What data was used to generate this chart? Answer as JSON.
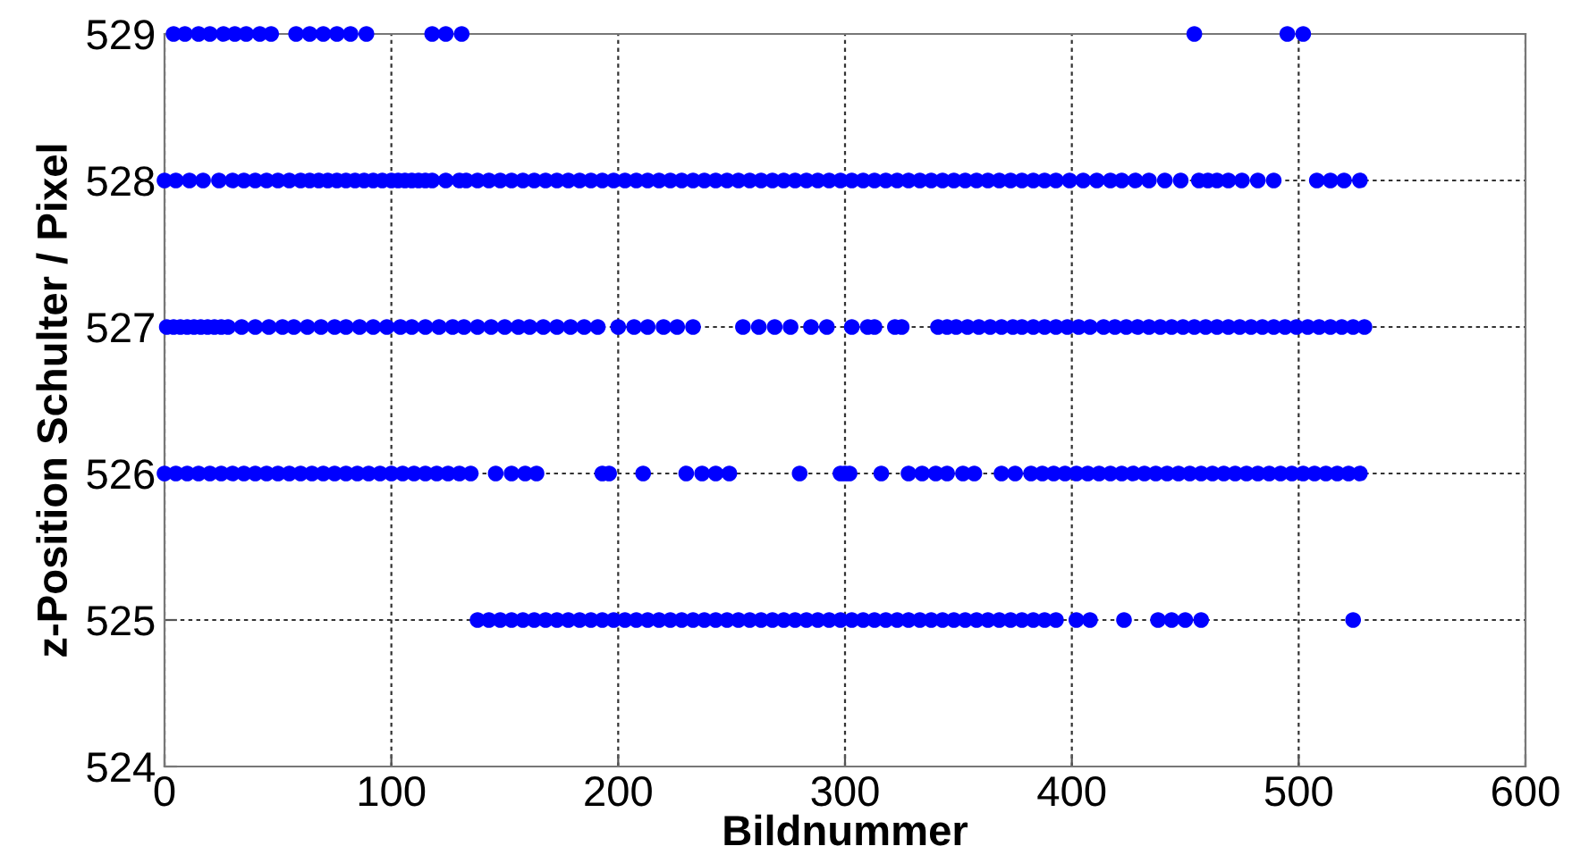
{
  "chart_data": {
    "type": "scatter",
    "xlabel": "Bildnummer",
    "ylabel": "z-Position Schulter / Pixel",
    "xlim": [
      0,
      600
    ],
    "ylim": [
      524,
      529
    ],
    "xticks": [
      0,
      100,
      200,
      300,
      400,
      500,
      600
    ],
    "yticks": [
      524,
      525,
      526,
      527,
      528,
      529
    ],
    "grid": true,
    "marker": "circle",
    "series": [
      {
        "color": "#0000ff",
        "x": [
          4,
          9,
          15,
          20,
          26,
          31,
          36,
          42,
          47,
          58,
          64,
          70,
          76,
          82,
          89,
          118,
          124,
          131,
          454,
          495,
          502
        ],
        "values": [
          529,
          529,
          529,
          529,
          529,
          529,
          529,
          529,
          529,
          529,
          529,
          529,
          529,
          529,
          529,
          529,
          529,
          529,
          529,
          529,
          529
        ]
      },
      {
        "color": "#0000ff",
        "x": [
          0,
          5,
          11,
          17,
          24,
          30,
          35,
          40,
          45,
          50,
          55,
          60,
          64,
          68,
          72,
          76,
          80,
          84,
          88,
          92,
          96,
          100,
          103,
          106,
          109,
          112,
          115,
          118,
          124,
          130,
          133,
          138,
          143,
          148,
          153,
          158,
          163,
          168,
          173,
          178,
          183,
          188,
          193,
          198,
          203,
          208,
          213,
          218,
          223,
          228,
          233,
          238,
          243,
          248,
          253,
          258,
          263,
          268,
          273,
          278,
          283,
          288,
          293,
          298,
          303,
          308,
          313,
          318,
          323,
          328,
          333,
          338,
          343,
          348,
          353,
          358,
          363,
          368,
          373,
          378,
          383,
          388,
          393,
          399,
          405,
          411,
          417,
          422,
          428,
          434,
          441,
          448,
          456,
          460,
          464,
          469,
          475,
          482,
          489,
          508,
          514,
          520,
          527
        ],
        "values": [
          528,
          528,
          528,
          528,
          528,
          528,
          528,
          528,
          528,
          528,
          528,
          528,
          528,
          528,
          528,
          528,
          528,
          528,
          528,
          528,
          528,
          528,
          528,
          528,
          528,
          528,
          528,
          528,
          528,
          528,
          528,
          528,
          528,
          528,
          528,
          528,
          528,
          528,
          528,
          528,
          528,
          528,
          528,
          528,
          528,
          528,
          528,
          528,
          528,
          528,
          528,
          528,
          528,
          528,
          528,
          528,
          528,
          528,
          528,
          528,
          528,
          528,
          528,
          528,
          528,
          528,
          528,
          528,
          528,
          528,
          528,
          528,
          528,
          528,
          528,
          528,
          528,
          528,
          528,
          528,
          528,
          528,
          528,
          528,
          528,
          528,
          528,
          528,
          528,
          528,
          528,
          528,
          528,
          528,
          528,
          528,
          528,
          528,
          528,
          528,
          528,
          528,
          528
        ]
      },
      {
        "color": "#0000ff",
        "x": [
          1,
          4,
          7,
          10,
          13,
          16,
          19,
          22,
          25,
          28,
          34,
          40,
          46,
          52,
          57,
          63,
          69,
          75,
          80,
          86,
          92,
          98,
          104,
          109,
          115,
          121,
          127,
          132,
          138,
          144,
          150,
          156,
          161,
          167,
          173,
          179,
          185,
          191,
          200,
          207,
          213,
          220,
          226,
          233,
          255,
          262,
          269,
          276,
          285,
          292,
          303,
          310,
          313,
          322,
          325,
          341,
          345,
          349,
          354,
          359,
          364,
          369,
          374,
          378,
          383,
          388,
          393,
          398,
          403,
          408,
          414,
          419,
          424,
          429,
          434,
          439,
          444,
          449,
          454,
          459,
          464,
          469,
          474,
          479,
          484,
          489,
          494,
          499,
          504,
          509,
          514,
          519,
          524,
          529
        ],
        "values": [
          527,
          527,
          527,
          527,
          527,
          527,
          527,
          527,
          527,
          527,
          527,
          527,
          527,
          527,
          527,
          527,
          527,
          527,
          527,
          527,
          527,
          527,
          527,
          527,
          527,
          527,
          527,
          527,
          527,
          527,
          527,
          527,
          527,
          527,
          527,
          527,
          527,
          527,
          527,
          527,
          527,
          527,
          527,
          527,
          527,
          527,
          527,
          527,
          527,
          527,
          527,
          527,
          527,
          527,
          527,
          527,
          527,
          527,
          527,
          527,
          527,
          527,
          527,
          527,
          527,
          527,
          527,
          527,
          527,
          527,
          527,
          527,
          527,
          527,
          527,
          527,
          527,
          527,
          527,
          527,
          527,
          527,
          527,
          527,
          527,
          527,
          527,
          527,
          527,
          527,
          527,
          527,
          527,
          527
        ]
      },
      {
        "color": "#0000ff",
        "x": [
          0,
          5,
          10,
          15,
          20,
          25,
          30,
          35,
          40,
          45,
          50,
          55,
          60,
          65,
          70,
          75,
          80,
          85,
          90,
          95,
          100,
          105,
          110,
          115,
          120,
          125,
          130,
          135,
          146,
          153,
          159,
          164,
          193,
          196,
          211,
          230,
          237,
          243,
          249,
          280,
          298,
          300,
          302,
          316,
          328,
          334,
          340,
          345,
          352,
          357,
          369,
          375,
          382,
          387,
          392,
          397,
          402,
          407,
          412,
          417,
          422,
          427,
          432,
          437,
          442,
          447,
          452,
          457,
          462,
          467,
          472,
          477,
          482,
          487,
          492,
          497,
          502,
          507,
          512,
          517,
          522,
          527
        ],
        "values": [
          526,
          526,
          526,
          526,
          526,
          526,
          526,
          526,
          526,
          526,
          526,
          526,
          526,
          526,
          526,
          526,
          526,
          526,
          526,
          526,
          526,
          526,
          526,
          526,
          526,
          526,
          526,
          526,
          526,
          526,
          526,
          526,
          526,
          526,
          526,
          526,
          526,
          526,
          526,
          526,
          526,
          526,
          526,
          526,
          526,
          526,
          526,
          526,
          526,
          526,
          526,
          526,
          526,
          526,
          526,
          526,
          526,
          526,
          526,
          526,
          526,
          526,
          526,
          526,
          526,
          526,
          526,
          526,
          526,
          526,
          526,
          526,
          526,
          526,
          526,
          526,
          526,
          526,
          526,
          526,
          526,
          526
        ]
      },
      {
        "color": "#0000ff",
        "x": [
          138,
          143,
          148,
          153,
          158,
          163,
          168,
          173,
          178,
          183,
          188,
          193,
          198,
          203,
          208,
          213,
          218,
          223,
          228,
          233,
          238,
          243,
          248,
          253,
          258,
          263,
          268,
          273,
          278,
          283,
          288,
          293,
          298,
          303,
          308,
          313,
          318,
          323,
          328,
          333,
          338,
          343,
          348,
          353,
          358,
          363,
          368,
          373,
          378,
          383,
          388,
          393,
          402,
          408,
          423,
          438,
          444,
          450,
          457,
          524
        ],
        "values": [
          525,
          525,
          525,
          525,
          525,
          525,
          525,
          525,
          525,
          525,
          525,
          525,
          525,
          525,
          525,
          525,
          525,
          525,
          525,
          525,
          525,
          525,
          525,
          525,
          525,
          525,
          525,
          525,
          525,
          525,
          525,
          525,
          525,
          525,
          525,
          525,
          525,
          525,
          525,
          525,
          525,
          525,
          525,
          525,
          525,
          525,
          525,
          525,
          525,
          525,
          525,
          525,
          525,
          525,
          525,
          525,
          525,
          525,
          525,
          525
        ]
      }
    ]
  }
}
